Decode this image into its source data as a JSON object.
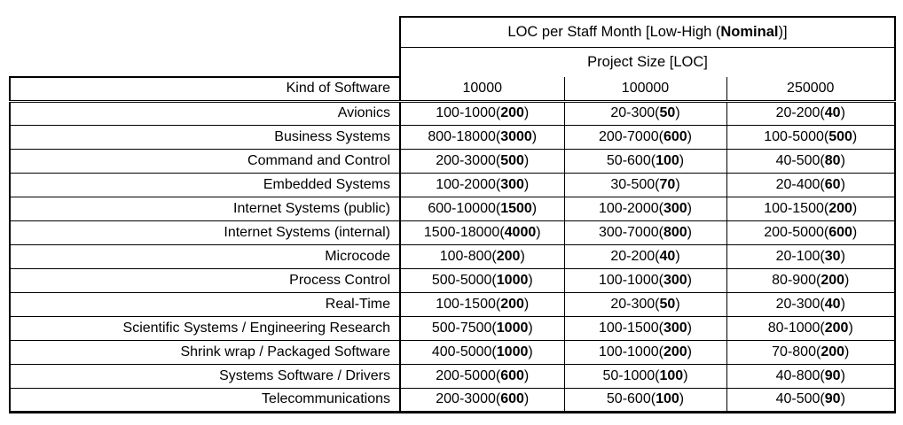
{
  "table": {
    "title": {
      "prefix": "LOC per Staff Month [Low-High (",
      "bold": "Nominal",
      "suffix": ")]"
    },
    "subtitle": "Project Size [LOC]",
    "corner_header": "Kind of Software",
    "size_columns": [
      "10000",
      "100000",
      "250000"
    ],
    "rows": [
      {
        "label": "Avionics",
        "cells": [
          {
            "low_high": "100-1000",
            "nominal": "200"
          },
          {
            "low_high": "20-300",
            "nominal": "50"
          },
          {
            "low_high": "20-200",
            "nominal": "40"
          }
        ]
      },
      {
        "label": "Business Systems",
        "cells": [
          {
            "low_high": "800-18000",
            "nominal": "3000"
          },
          {
            "low_high": "200-7000",
            "nominal": "600"
          },
          {
            "low_high": "100-5000",
            "nominal": "500"
          }
        ]
      },
      {
        "label": "Command and Control",
        "cells": [
          {
            "low_high": "200-3000",
            "nominal": "500"
          },
          {
            "low_high": "50-600",
            "nominal": "100"
          },
          {
            "low_high": "40-500",
            "nominal": "80"
          }
        ]
      },
      {
        "label": "Embedded Systems",
        "cells": [
          {
            "low_high": "100-2000",
            "nominal": "300"
          },
          {
            "low_high": "30-500",
            "nominal": "70"
          },
          {
            "low_high": "20-400",
            "nominal": "60"
          }
        ]
      },
      {
        "label": "Internet Systems (public)",
        "cells": [
          {
            "low_high": "600-10000",
            "nominal": "1500"
          },
          {
            "low_high": "100-2000",
            "nominal": "300"
          },
          {
            "low_high": "100-1500",
            "nominal": "200"
          }
        ]
      },
      {
        "label": "Internet Systems (internal)",
        "cells": [
          {
            "low_high": "1500-18000",
            "nominal": "4000"
          },
          {
            "low_high": "300-7000",
            "nominal": "800"
          },
          {
            "low_high": "200-5000",
            "nominal": "600"
          }
        ]
      },
      {
        "label": "Microcode",
        "cells": [
          {
            "low_high": "100-800",
            "nominal": "200"
          },
          {
            "low_high": "20-200",
            "nominal": "40"
          },
          {
            "low_high": "20-100",
            "nominal": "30"
          }
        ]
      },
      {
        "label": "Process Control",
        "cells": [
          {
            "low_high": "500-5000",
            "nominal": "1000"
          },
          {
            "low_high": "100-1000",
            "nominal": "300"
          },
          {
            "low_high": "80-900",
            "nominal": "200"
          }
        ]
      },
      {
        "label": "Real-Time",
        "cells": [
          {
            "low_high": "100-1500",
            "nominal": "200"
          },
          {
            "low_high": "20-300",
            "nominal": "50"
          },
          {
            "low_high": "20-300",
            "nominal": "40"
          }
        ]
      },
      {
        "label": "Scientific Systems / Engineering Research",
        "cells": [
          {
            "low_high": "500-7500",
            "nominal": "1000"
          },
          {
            "low_high": "100-1500",
            "nominal": "300"
          },
          {
            "low_high": "80-1000",
            "nominal": "200"
          }
        ]
      },
      {
        "label": "Shrink wrap / Packaged Software",
        "cells": [
          {
            "low_high": "400-5000",
            "nominal": "1000"
          },
          {
            "low_high": "100-1000",
            "nominal": "200"
          },
          {
            "low_high": "70-800",
            "nominal": "200"
          }
        ]
      },
      {
        "label": "Systems Software / Drivers",
        "cells": [
          {
            "low_high": "200-5000",
            "nominal": "600"
          },
          {
            "low_high": "50-1000",
            "nominal": "100"
          },
          {
            "low_high": "40-800",
            "nominal": "90"
          }
        ]
      },
      {
        "label": "Telecommunications",
        "cells": [
          {
            "low_high": "200-3000",
            "nominal": "600"
          },
          {
            "low_high": "50-600",
            "nominal": "100"
          },
          {
            "low_high": "40-500",
            "nominal": "90"
          }
        ]
      }
    ]
  }
}
